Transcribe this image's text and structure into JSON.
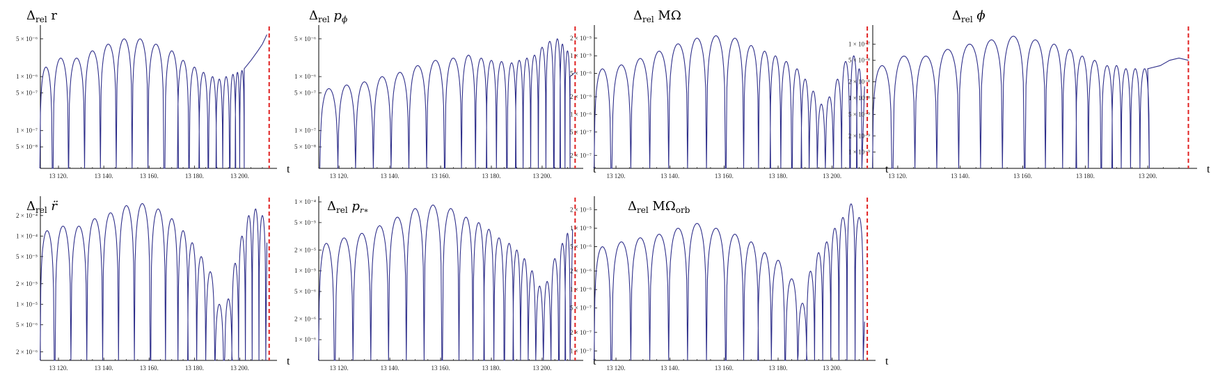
{
  "figure": {
    "x_label": "t",
    "line_color": "#2e2e8a",
    "marker_color": "#e02020",
    "panels": [
      {
        "title_html": "&#916;<tspan font-size='12' dy='4'>rel</tspan><tspan dy='-4'> r</tspan>",
        "title_text": "Δrel r",
        "y_tick_labels": [
          "5 × 10⁻⁶",
          "1 × 10⁻⁶",
          "5 × 10⁻⁷",
          "1 × 10⁻⁷",
          "5 × 10⁻⁸"
        ],
        "x_tick_labels": [
          "13 120.",
          "13 140.",
          "13 160.",
          "13 180.",
          "13 200."
        ]
      },
      {
        "title_html": "&#916;<tspan font-size='12' dy='4'>rel</tspan><tspan dy='-4' font-style='italic'> p</tspan><tspan font-size='12' dy='4' font-style='italic'>ϕ</tspan>",
        "title_text": "Δrel pϕ",
        "y_tick_labels": [
          "5 × 10⁻⁶",
          "1 × 10⁻⁶",
          "5 × 10⁻⁷",
          "1 × 10⁻⁷",
          "5 × 10⁻⁸"
        ],
        "x_tick_labels": [
          "13 120.",
          "13 140.",
          "13 160.",
          "13 180.",
          "13 200."
        ]
      },
      {
        "title_html": "&#916;<tspan font-size='12' dy='4'>rel</tspan><tspan dy='-4'> MΩ</tspan>",
        "title_text": "Δrel MΩ",
        "y_tick_labels": [
          "2 × 10⁻⁵",
          "1 × 10⁻⁵",
          "5 × 10⁻⁶",
          "2 × 10⁻⁶",
          "1 × 10⁻⁶",
          "5 × 10⁻⁷",
          "2 × 10⁻⁷"
        ],
        "x_tick_labels": [
          "13 120.",
          "13 140.",
          "13 160.",
          "13 180.",
          "13 200."
        ]
      },
      {
        "title_html": "&#916;<tspan font-size='12' dy='4'>rel</tspan><tspan dy='-4' font-style='italic'> ϕ</tspan>",
        "title_text": "Δrel ϕ",
        "y_tick_labels": [
          "1 × 10⁻⁷",
          "5 × 10⁻⁸",
          "2 × 10⁻⁸",
          "1 × 10⁻⁸",
          "5 × 10⁻⁹",
          "2 × 10⁻⁹",
          "1 × 10⁻⁹"
        ],
        "x_tick_labels": [
          "13 120.",
          "13 140.",
          "13 160.",
          "13 180.",
          "13 200."
        ]
      },
      {
        "title_html": "&#916;<tspan font-size='12' dy='4'>rel</tspan><tspan dy='-4' font-style='italic'> r̈</tspan>",
        "title_text": "Δrel r̈",
        "y_tick_labels": [
          "2 × 10⁻⁴",
          "1 × 10⁻⁴",
          "5 × 10⁻⁵",
          "2 × 10⁻⁵",
          "1 × 10⁻⁵",
          "5 × 10⁻⁶",
          "2 × 10⁻⁶"
        ],
        "x_tick_labels": [
          "13 120.",
          "13 140.",
          "13 160.",
          "13 180.",
          "13 200."
        ]
      },
      {
        "title_html": "&#916;<tspan font-size='12' dy='4'>rel</tspan><tspan dy='-4' font-style='italic'> p</tspan><tspan font-size='11' dy='4' font-style='italic'>r∗</tspan>",
        "title_text": "Δrel pr∗",
        "y_tick_labels": [
          "1 × 10⁻⁴",
          "5 × 10⁻⁵",
          "2 × 10⁻⁵",
          "1 × 10⁻⁵",
          "5 × 10⁻⁶",
          "2 × 10⁻⁶",
          "1 × 10⁻⁶"
        ],
        "x_tick_labels": [
          "13 120.",
          "13 140.",
          "13 160.",
          "13 180.",
          "13 200."
        ]
      },
      {
        "title_html": "&#916;<tspan font-size='12' dy='4'>rel</tspan><tspan dy='-4'> MΩ</tspan><tspan font-size='12' dy='4'>orb</tspan>",
        "title_text": "Δrel MΩorb",
        "y_tick_labels": [
          "2 × 10⁻⁵",
          "1 × 10⁻⁵",
          "5 × 10⁻⁶",
          "2 × 10⁻⁶",
          "1 × 10⁻⁶",
          "5 × 10⁻⁷",
          "2 × 10⁻⁷",
          "1 × 10⁻⁷"
        ],
        "x_tick_labels": [
          "13 120.",
          "13 140.",
          "13 160.",
          "13 180.",
          "13 200."
        ]
      }
    ]
  },
  "chart_data": [
    {
      "type": "line",
      "title": "Δrel r",
      "xlabel": "t",
      "ylabel": "",
      "log_y": true,
      "xlim": [
        13112,
        13214
      ],
      "ylim": [
        2e-08,
        8e-06
      ],
      "marker_x": 13213,
      "arch_centers": [
        13114.5,
        13121,
        13128,
        13135,
        13142,
        13149,
        13156,
        13163,
        13170,
        13175,
        13180,
        13184,
        13188,
        13191,
        13194,
        13197,
        13199,
        13201
      ],
      "arch_peaks": [
        1.5e-06,
        2.2e-06,
        2.2e-06,
        3e-06,
        4e-06,
        5e-06,
        5e-06,
        4e-06,
        3e-06,
        2e-06,
        1.5e-06,
        1.2e-06,
        1e-06,
        9e-07,
        1e-06,
        1.1e-06,
        1.2e-06,
        1.3e-06
      ],
      "tail": [
        [
          13202,
          1.4e-06
        ],
        [
          13205,
          2e-06
        ],
        [
          13208,
          3e-06
        ],
        [
          13210,
          4e-06
        ],
        [
          13212,
          6e-06
        ]
      ]
    },
    {
      "type": "line",
      "title": "Δrel pϕ",
      "xlabel": "t",
      "ylabel": "",
      "log_y": true,
      "xlim": [
        13112,
        13214
      ],
      "ylim": [
        2e-08,
        8e-06
      ],
      "marker_x": 13213,
      "arch_centers": [
        13116,
        13123,
        13130,
        13137,
        13144,
        13151,
        13158,
        13165,
        13171,
        13176,
        13180,
        13184,
        13188,
        13191,
        13194,
        13197,
        13200,
        13203,
        13206,
        13208,
        13210
      ],
      "arch_peaks": [
        6e-07,
        7e-07,
        8e-07,
        1e-06,
        1.2e-06,
        1.6e-06,
        2e-06,
        2.2e-06,
        2.5e-06,
        2.2e-06,
        2e-06,
        1.9e-06,
        1.8e-06,
        2e-06,
        2.2e-06,
        2.5e-06,
        3.5e-06,
        4.5e-06,
        5e-06,
        4e-06,
        3e-06
      ],
      "tail": [
        [
          13211,
          1e-06
        ],
        [
          13213,
          1.2e-06
        ]
      ]
    },
    {
      "type": "line",
      "title": "Δrel MΩ",
      "xlabel": "t",
      "ylabel": "",
      "log_y": true,
      "xlim": [
        13112,
        13214
      ],
      "ylim": [
        1.2e-07,
        3e-05
      ],
      "marker_x": 13213,
      "arch_centers": [
        13115,
        13122,
        13129,
        13136,
        13143,
        13150,
        13157,
        13164,
        13170,
        13175,
        13179,
        13183,
        13187,
        13190,
        13193,
        13196,
        13199,
        13202,
        13205,
        13208,
        13210
      ],
      "arch_peaks": [
        6e-06,
        7e-06,
        9e-06,
        1.2e-05,
        1.6e-05,
        2e-05,
        2.2e-05,
        2e-05,
        1.5e-05,
        1.2e-05,
        1e-05,
        8e-06,
        6e-06,
        4e-06,
        2.5e-06,
        1.5e-06,
        2e-06,
        4e-06,
        8e-06,
        1e-05,
        6e-06
      ],
      "tail": [
        [
          13212,
          3e-06
        ]
      ]
    },
    {
      "type": "line",
      "title": "Δrel ϕ",
      "xlabel": "t",
      "ylabel": "",
      "log_y": true,
      "xlim": [
        13112,
        13214
      ],
      "ylim": [
        5e-10,
        2e-07
      ],
      "marker_x": 13213,
      "arch_centers": [
        13115,
        13122,
        13129,
        13136,
        13143,
        13150,
        13157,
        13164,
        13170,
        13175,
        13179,
        13183,
        13187,
        13190,
        13193,
        13196,
        13199
      ],
      "arch_peaks": [
        4e-08,
        6e-08,
        6e-08,
        8e-08,
        1e-07,
        1.2e-07,
        1.4e-07,
        1.2e-07,
        1e-07,
        8e-08,
        6e-08,
        5e-08,
        4e-08,
        4e-08,
        3.5e-08,
        3.5e-08,
        3.5e-08
      ],
      "tail": [
        [
          13200,
          3.5e-08
        ],
        [
          13204,
          4e-08
        ],
        [
          13207,
          5e-08
        ],
        [
          13210,
          5.5e-08
        ],
        [
          13213,
          5e-08
        ]
      ]
    },
    {
      "type": "line",
      "title": "Δrel r̈",
      "xlabel": "t",
      "ylabel": "",
      "log_y": true,
      "xlim": [
        13112,
        13214
      ],
      "ylim": [
        1.5e-06,
        0.00035
      ],
      "marker_x": 13213,
      "arch_centers": [
        13115,
        13122,
        13129,
        13136,
        13143,
        13150,
        13157,
        13164,
        13170,
        13175,
        13179,
        13183,
        13187,
        13191,
        13195,
        13198,
        13201,
        13204,
        13207,
        13210
      ],
      "arch_peaks": [
        0.00012,
        0.00014,
        0.00014,
        0.00018,
        0.00022,
        0.00028,
        0.0003,
        0.00025,
        0.00018,
        0.00012,
        8e-05,
        5e-05,
        3e-05,
        1e-05,
        1.2e-05,
        4e-05,
        0.0001,
        0.0002,
        0.00025,
        0.0002
      ],
      "tail": [
        [
          13212,
          8e-05
        ]
      ]
    },
    {
      "type": "line",
      "title": "Δrel pr∗",
      "xlabel": "t",
      "ylabel": "",
      "log_y": true,
      "xlim": [
        13112,
        13214
      ],
      "ylim": [
        5e-07,
        0.00011
      ],
      "marker_x": 13213,
      "arch_centers": [
        13115,
        13122,
        13129,
        13136,
        13143,
        13150,
        13157,
        13164,
        13170,
        13175,
        13179,
        13183,
        13187,
        13190,
        13193,
        13196,
        13199,
        13202,
        13205,
        13208,
        13210
      ],
      "arch_peaks": [
        2.5e-05,
        3e-05,
        3.5e-05,
        4.5e-05,
        6e-05,
        8e-05,
        9e-05,
        8e-05,
        6e-05,
        5e-05,
        4e-05,
        3e-05,
        2.5e-05,
        2e-05,
        1.5e-05,
        1e-05,
        6e-06,
        7e-06,
        1.5e-05,
        2.5e-05,
        3.5e-05
      ],
      "tail": [
        [
          13212,
          4e-05
        ]
      ]
    },
    {
      "type": "line",
      "title": "Δrel MΩorb",
      "xlabel": "t",
      "ylabel": "",
      "log_y": true,
      "xlim": [
        13112,
        13214
      ],
      "ylim": [
        7e-08,
        3e-05
      ],
      "marker_x": 13213,
      "arch_centers": [
        13115,
        13122,
        13129,
        13136,
        13143,
        13150,
        13157,
        13164,
        13170,
        13175,
        13180,
        13185,
        13189,
        13192,
        13195,
        13198,
        13201,
        13204,
        13207,
        13210
      ],
      "arch_peaks": [
        5e-06,
        6e-06,
        7e-06,
        8e-06,
        1e-05,
        1.2e-05,
        1e-05,
        8e-06,
        6e-06,
        4e-06,
        3e-06,
        1.5e-06,
        6e-07,
        2e-06,
        4e-06,
        6e-06,
        1e-05,
        1.5e-05,
        2.5e-05,
        1.5e-05
      ],
      "tail": [
        [
          13212,
          3e-07
        ]
      ]
    }
  ]
}
